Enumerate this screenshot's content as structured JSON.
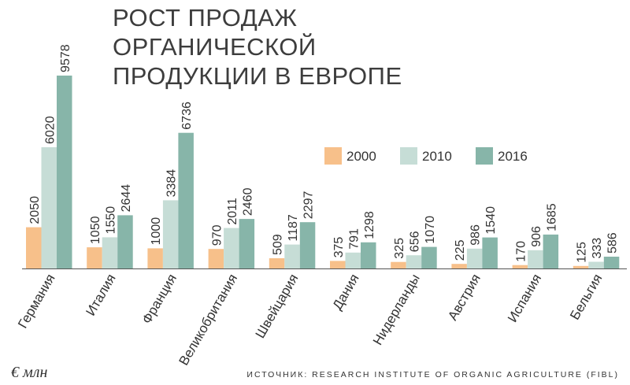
{
  "title_lines": [
    "РОСТ ПРОДАЖ ОРГАНИЧЕСКОЙ",
    "ПРОДУКЦИИ В ЕВРОПЕ"
  ],
  "unit": "€ млн",
  "source": "ИСТОЧНИК: RESEARCH INSTITUTE OF ORGANIC AGRICULTURE (FIBL)",
  "colors": {
    "s2000": "#f7c08a",
    "s2010": "#c6ddd6",
    "s2016": "#87b5a9",
    "axis": "#555555"
  },
  "chart_data": {
    "type": "bar",
    "title": "РОСТ ПРОДАЖ ОРГАНИЧЕСКОЙ ПРОДУКЦИИ В ЕВРОПЕ",
    "ylabel": "€ млн",
    "ylim": [
      0,
      9578
    ],
    "legend_position": "top-right",
    "grid": false,
    "categories": [
      "Германия",
      "Италия",
      "Франция",
      "Великобритания",
      "Швейцария",
      "Дания",
      "Нидерланды",
      "Австрия",
      "Испания",
      "Бельгия"
    ],
    "series": [
      {
        "name": "2000",
        "values": [
          2050,
          1050,
          1000,
          970,
          509,
          375,
          325,
          225,
          170,
          125
        ]
      },
      {
        "name": "2010",
        "values": [
          6020,
          1550,
          3384,
          2011,
          1187,
          791,
          656,
          986,
          906,
          333
        ]
      },
      {
        "name": "2016",
        "values": [
          9578,
          2644,
          6736,
          2460,
          2297,
          1298,
          1070,
          1540,
          1685,
          586
        ]
      }
    ]
  }
}
